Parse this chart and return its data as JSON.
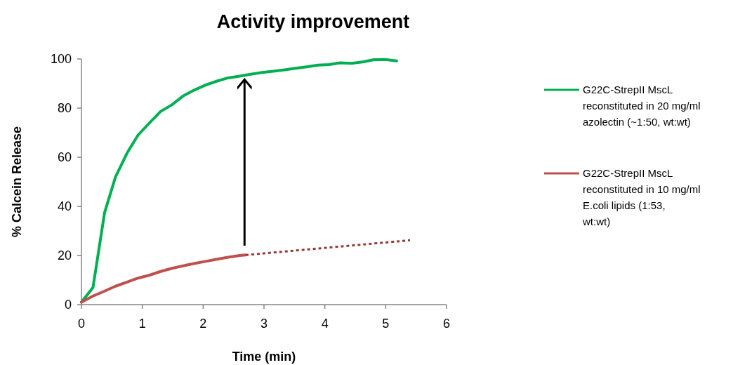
{
  "chart_data": {
    "type": "line",
    "title": "Activity improvement",
    "xlabel": "Time (min)",
    "ylabel": "% Calcein Release",
    "xlim": [
      0,
      6
    ],
    "xticks": [
      0,
      1,
      2,
      3,
      4,
      5,
      6
    ],
    "ylim": [
      0,
      100
    ],
    "yticks": [
      0,
      20,
      40,
      60,
      80,
      100
    ],
    "grid": false,
    "legend": "right",
    "marker": "none",
    "line_style": "solid",
    "series": [
      {
        "name": "G22C-StrepII MscL reconstituted in 20 mg/ml azolectin (~1:50, wt:wt)",
        "color": "#00b050",
        "x": [
          0,
          0.19,
          0.38,
          0.56,
          0.75,
          0.93,
          1.12,
          1.3,
          1.49,
          1.67,
          1.86,
          2.04,
          2.23,
          2.41,
          2.6,
          2.78,
          2.97,
          3.15,
          3.34,
          3.52,
          3.7,
          3.89,
          4.07,
          4.25,
          4.44,
          4.62,
          4.81,
          4.99,
          5.18
        ],
        "values": [
          1,
          7,
          37.4,
          52,
          61.7,
          69,
          74,
          78.6,
          81.4,
          84.9,
          87.4,
          89.4,
          91,
          92.3,
          93,
          93.8,
          94.5,
          95,
          95.6,
          96.2,
          96.8,
          97.5,
          97.7,
          98.4,
          98.2,
          98.8,
          99.7,
          99.8,
          99.2
        ]
      },
      {
        "name": "G22C-StrepII MscL reconstituted in 10 mg/ml E.coli lipids (1:53, wt:wt)",
        "color": "#c0504d",
        "x": [
          0,
          0.19,
          0.38,
          0.56,
          0.75,
          0.93,
          1.12,
          1.3,
          1.49,
          1.67,
          1.86,
          2.04,
          2.23,
          2.41,
          2.6,
          2.7
        ],
        "values": [
          1,
          3.5,
          5.5,
          7.5,
          9.2,
          10.8,
          12,
          13.5,
          14.8,
          15.8,
          16.8,
          17.6,
          18.5,
          19.3,
          20,
          20.2
        ]
      },
      {
        "color": "#953735",
        "line_style": "dotted",
        "x": [
          2.7,
          5.4
        ],
        "values": [
          20.2,
          26.2
        ]
      }
    ]
  }
}
